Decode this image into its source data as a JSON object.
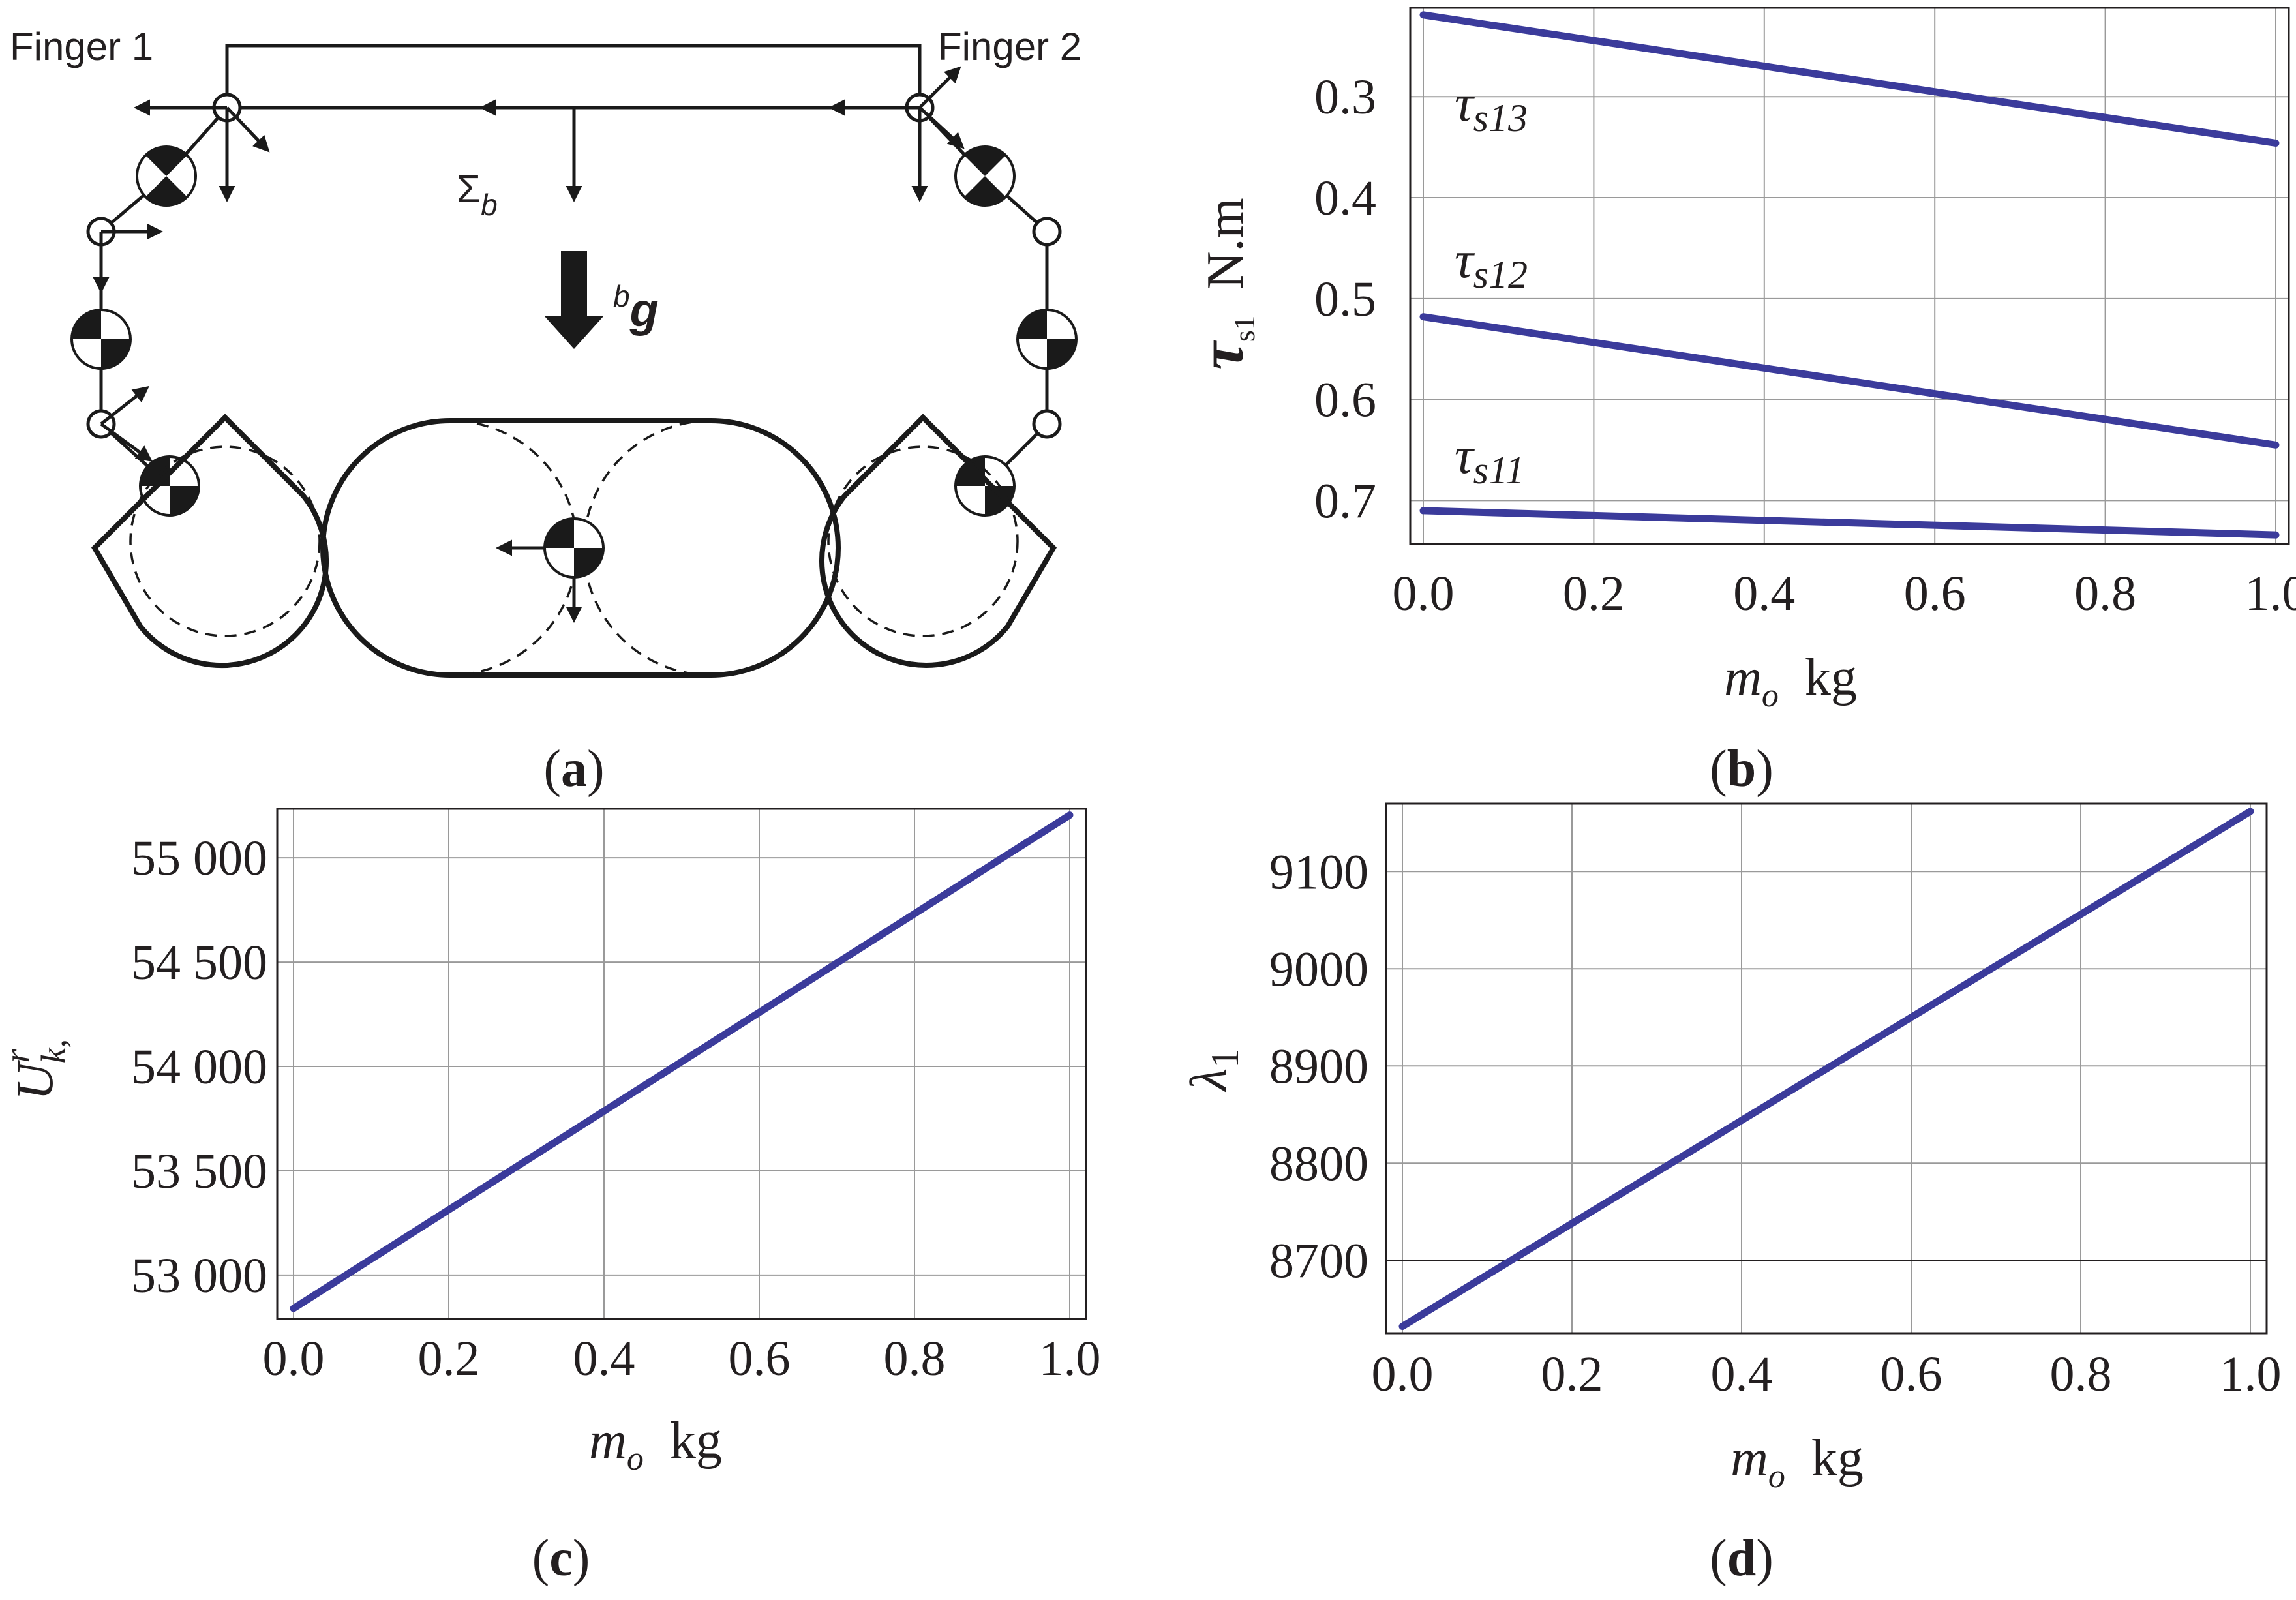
{
  "colors": {
    "series": "#3b3b9b",
    "ink": "#231f20",
    "grid": "#9a9a9a"
  },
  "diagram": {
    "finger1_label": "Finger 1",
    "finger2_label": "Finger 2",
    "sigma_symbol": "Σ",
    "sigma_sub": "b",
    "gravity_sup": "b",
    "gravity_symbol": "g",
    "icons": [
      "center-of-mass-icon",
      "revolute-joint-icon",
      "frame-arrow-icon",
      "gravity-arrow-icon"
    ]
  },
  "panel_labels": {
    "a": "a",
    "b": "b",
    "c": "c",
    "d": "d"
  },
  "chart_data": [
    {
      "id": "b",
      "type": "line",
      "ylabel_symbol": "τ",
      "ylabel_sub": "s1",
      "ylabel_unit": "N.m",
      "xlabel_symbol": "m",
      "xlabel_sub": "o",
      "xlabel_unit": "kg",
      "xlim": [
        0,
        1
      ],
      "ylim": [
        0.743,
        0.212
      ],
      "y_reversed": true,
      "xticks": [
        0.0,
        0.2,
        0.4,
        0.6,
        0.8,
        1.0
      ],
      "xtick_labels": [
        "0.0",
        "0.2",
        "0.4",
        "0.6",
        "0.8",
        "1.0"
      ],
      "yticks": [
        0.3,
        0.4,
        0.5,
        0.6,
        0.7
      ],
      "ytick_labels": [
        "0.3",
        "0.4",
        "0.5",
        "0.6",
        "0.7"
      ],
      "grid": true,
      "series": [
        {
          "name": "τs13",
          "label_symbol": "τ",
          "label_sub": "s13",
          "x": [
            0,
            1
          ],
          "y": [
            0.219,
            0.346
          ]
        },
        {
          "name": "τs12",
          "label_symbol": "τ",
          "label_sub": "s12",
          "x": [
            0,
            1
          ],
          "y": [
            0.518,
            0.645
          ]
        },
        {
          "name": "τs11",
          "label_symbol": "τ",
          "label_sub": "s11",
          "x": [
            0,
            1
          ],
          "y": [
            0.71,
            0.734
          ]
        }
      ]
    },
    {
      "id": "c",
      "type": "line",
      "ylabel_symbol": "U",
      "ylabel_sup": "r",
      "ylabel_sub": "k,",
      "xlabel_symbol": "m",
      "xlabel_sub": "o",
      "xlabel_unit": "kg",
      "xlim": [
        0,
        1
      ],
      "ylim": [
        52790,
        55235
      ],
      "xticks": [
        0.0,
        0.2,
        0.4,
        0.6,
        0.8,
        1.0
      ],
      "xtick_labels": [
        "0.0",
        "0.2",
        "0.4",
        "0.6",
        "0.8",
        "1.0"
      ],
      "yticks": [
        53000,
        53500,
        54000,
        54500,
        55000
      ],
      "ytick_labels": [
        "53 000",
        "53 500",
        "54 000",
        "54 500",
        "55 000"
      ],
      "grid": true,
      "series": [
        {
          "name": "U",
          "x": [
            0,
            1
          ],
          "y": [
            52840,
            55205
          ]
        }
      ]
    },
    {
      "id": "d",
      "type": "line",
      "ylabel_symbol": "λ",
      "ylabel_sub": "1",
      "xlabel_symbol": "m",
      "xlabel_sub": "o",
      "xlabel_unit": "kg",
      "xlim": [
        0,
        1
      ],
      "ylim": [
        8625,
        9170
      ],
      "xticks": [
        0.0,
        0.2,
        0.4,
        0.6,
        0.8,
        1.0
      ],
      "xtick_labels": [
        "0.0",
        "0.2",
        "0.4",
        "0.6",
        "0.8",
        "1.0"
      ],
      "yticks": [
        8700,
        8800,
        8900,
        9000,
        9100
      ],
      "ytick_labels": [
        "8700",
        "8800",
        "8900",
        "9000",
        "9100"
      ],
      "grid": true,
      "reference_y": 8700,
      "series": [
        {
          "name": "λ1",
          "x": [
            0,
            1
          ],
          "y": [
            8632,
            9162
          ]
        }
      ]
    }
  ]
}
